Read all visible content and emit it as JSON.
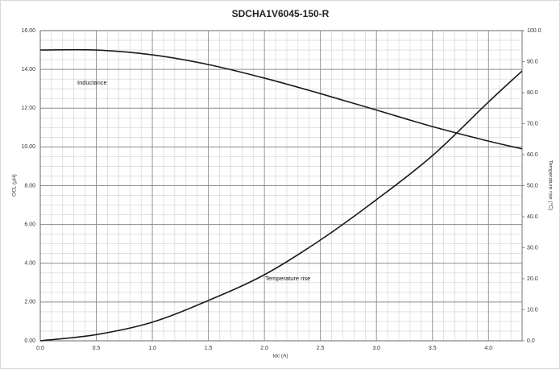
{
  "chart_data": {
    "type": "line",
    "title": "SDCHA1V6045-150-R",
    "x_label": "Idc (A)",
    "y_label": "OCL (µH)",
    "y2_label": "Temperature rise (°C)",
    "annotations": [
      "Inductance",
      "Temperature rise"
    ],
    "x": [
      0,
      0.5,
      1.0,
      1.5,
      2.0,
      2.5,
      3.0,
      3.5,
      4.0,
      4.3
    ],
    "series": [
      {
        "name": "Inductance",
        "color": "#1a1a1a",
        "values": [
          15.0,
          15.0,
          14.75,
          14.25,
          13.55,
          12.75,
          11.9,
          11.05,
          10.3,
          9.9
        ]
      },
      {
        "name": "Temperature rise",
        "color": "#1a1a1a",
        "axis": "y2",
        "values": [
          0,
          2,
          6,
          13,
          21.3,
          32.5,
          45.5,
          59.7,
          77,
          87
        ]
      }
    ],
    "xlim": [
      0,
      4.3
    ],
    "xticks": [
      {
        "value": 0,
        "label": "0.0"
      },
      0.5,
      {
        "value": 1,
        "label": "1.0"
      },
      1.5,
      {
        "value": 2,
        "label": "2.0"
      },
      2.5,
      {
        "value": 3,
        "label": "3.0"
      },
      3.5,
      {
        "value": 4,
        "label": "4.0"
      }
    ],
    "ylim": [
      0,
      16
    ],
    "yticks": [
      {
        "value": 0,
        "label": "0.00"
      },
      {
        "value": 2,
        "label": "2.00"
      },
      {
        "value": 4,
        "label": "4.00"
      },
      {
        "value": 6,
        "label": "6.00"
      },
      {
        "value": 8,
        "label": "8.00"
      },
      {
        "value": 10,
        "label": "10.00"
      },
      {
        "value": 12,
        "label": "12.00"
      },
      {
        "value": 14,
        "label": "14.00"
      },
      {
        "value": 16,
        "label": "16.00"
      }
    ],
    "y2lim": [
      0,
      100
    ],
    "y2ticks": [
      {
        "value": 0,
        "label": "0.0"
      },
      {
        "value": 10,
        "label": "10.0"
      },
      {
        "value": 20,
        "label": "20.0"
      },
      {
        "value": 30,
        "label": "30.0"
      },
      {
        "value": 40,
        "label": "40.0"
      },
      {
        "value": 50,
        "label": "50.0"
      },
      {
        "value": 60,
        "label": "60.0"
      },
      {
        "value": 70,
        "label": "70.0"
      },
      {
        "value": 80,
        "label": "80.0"
      },
      {
        "value": 90,
        "label": "90.0"
      },
      {
        "value": 100,
        "label": "100.0"
      }
    ],
    "grid": true
  }
}
